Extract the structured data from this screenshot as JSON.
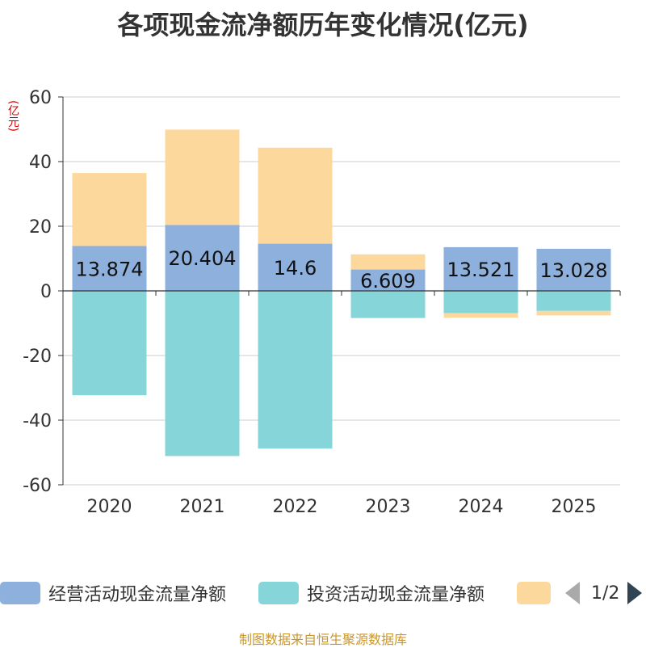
{
  "chart_data": {
    "type": "bar",
    "stacked": true,
    "title": "各项现金流净额历年变化情况(亿元)",
    "unit_label": "(亿元)",
    "categories": [
      "2020",
      "2021",
      "2022",
      "2023",
      "2024",
      "2025"
    ],
    "ylim": [
      -60,
      60
    ],
    "yticks": [
      60,
      40,
      20,
      0,
      -20,
      -40,
      -60
    ],
    "series": [
      {
        "name": "经营活动现金流量净额",
        "color": "#8eb0dc",
        "values": [
          13.874,
          20.404,
          14.6,
          6.609,
          13.521,
          13.028
        ],
        "labels": [
          "13.874",
          "20.404",
          "14.6",
          "6.609",
          "13.521",
          "13.028"
        ]
      },
      {
        "name": "投资活动现金流量净额",
        "color": "#86d5d9",
        "values": [
          -32.3,
          -51.1,
          -48.8,
          -8.4,
          -6.9,
          -6.2
        ]
      },
      {
        "name": "",
        "color": "#fdd89c",
        "values": [
          22.6,
          29.5,
          29.7,
          4.7,
          -1.4,
          -1.4
        ]
      }
    ]
  },
  "legend": {
    "items": [
      {
        "label": "经营活动现金流量净额",
        "color": "#8eb0dc"
      },
      {
        "label": "投资活动现金流量净额",
        "color": "#86d5d9"
      },
      {
        "label": "",
        "color": "#fdd89c"
      }
    ],
    "page": "1/2"
  },
  "footer": "制图数据来自恒生聚源数据库"
}
